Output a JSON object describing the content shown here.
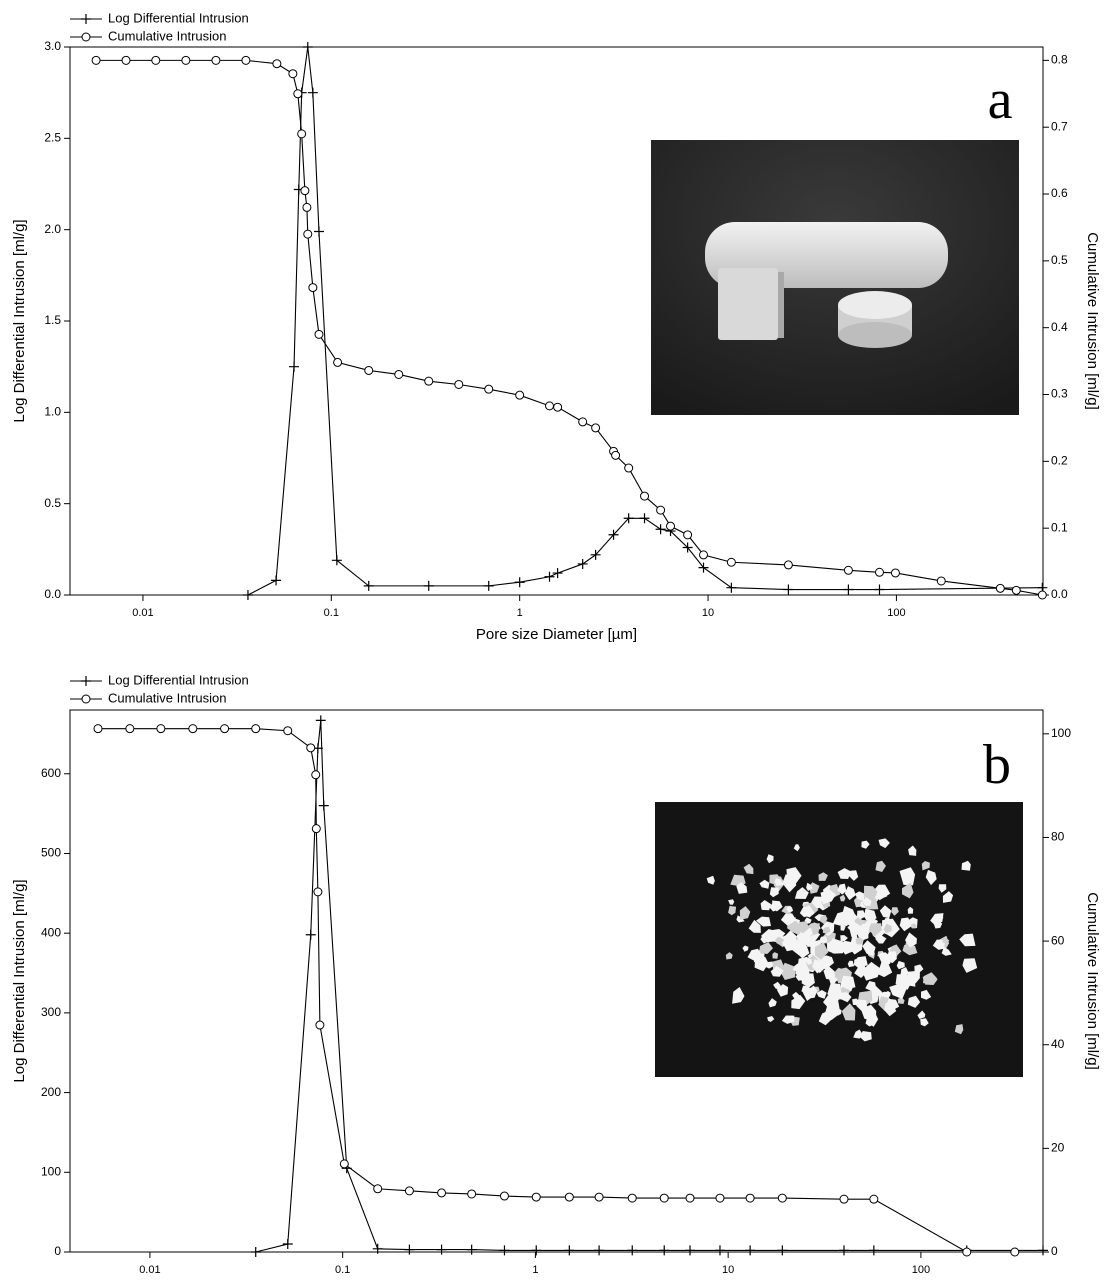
{
  "chart_data": [
    {
      "type": "line",
      "annotation": "a",
      "xlabel": "Pore size Diameter [µm]",
      "ylabel": "Log Differential Intrusion [ml/g]",
      "y2label": "Cumulative Intrusion [ml/g]",
      "xscale": "log",
      "xlim": [
        0.0041,
        600
      ],
      "xticks": [
        0.01,
        0.1,
        1,
        10,
        100
      ],
      "ylim": [
        0,
        3.0
      ],
      "yticks": [
        {
          "value": 0,
          "label": "0.0"
        },
        0.5,
        {
          "value": 1,
          "label": "1.0"
        },
        1.5,
        {
          "value": 2,
          "label": "2.0"
        },
        2.5,
        {
          "value": 3,
          "label": "3.0"
        }
      ],
      "y2lim": [
        0,
        0.82
      ],
      "y2ticks": [
        {
          "value": 0,
          "label": "0.0"
        },
        0.1,
        0.2,
        0.3,
        0.4,
        0.5,
        0.6,
        0.7,
        0.8
      ],
      "series": [
        {
          "name": "Log Differential Intrusion",
          "color": "#000000",
          "marker": "plus",
          "x": [
            0.0361,
            0.0509,
            0.0634,
            0.0672,
            0.0696,
            0.075,
            0.0798,
            0.086,
            0.107,
            0.158,
            0.329,
            0.685,
            1,
            1.44,
            1.59,
            2.16,
            2.53,
            3.15,
            3.79,
            4.6,
            5.6,
            6.32,
            7.79,
            9.46,
            13.3,
            26.7,
            55.6,
            81.3,
            595
          ],
          "values": [
            0,
            0.08,
            1.25,
            2.22,
            2.75,
            3.0,
            2.75,
            1.99,
            0.19,
            0.05,
            0.05,
            0.05,
            0.07,
            0.1,
            0.12,
            0.17,
            0.22,
            0.33,
            0.42,
            0.42,
            0.36,
            0.35,
            0.26,
            0.15,
            0.04,
            0.03,
            0.03,
            0.03,
            0.04
          ]
        },
        {
          "name": "Cumulative Intrusion",
          "color": "#000000",
          "marker": "circle",
          "axis": "y2",
          "x": [
            0.00564,
            0.00813,
            0.0117,
            0.0169,
            0.0244,
            0.0352,
            0.0514,
            0.0625,
            0.0664,
            0.0696,
            0.0724,
            0.0742,
            0.075,
            0.0798,
            0.086,
            0.108,
            0.158,
            0.228,
            0.329,
            0.475,
            0.685,
            1,
            1.44,
            1.59,
            2.16,
            2.53,
            3.15,
            3.23,
            3.79,
            4.6,
            5.6,
            6.32,
            7.79,
            9.46,
            13.3,
            26.7,
            55.6,
            81.3,
            98.8,
            173,
            356,
            433,
            595
          ],
          "values": [
            0.8,
            0.8,
            0.8,
            0.8,
            0.8,
            0.8,
            0.795,
            0.78,
            0.75,
            0.69,
            0.605,
            0.58,
            0.54,
            0.46,
            0.39,
            0.348,
            0.336,
            0.33,
            0.32,
            0.315,
            0.308,
            0.299,
            0.283,
            0.281,
            0.259,
            0.25,
            0.215,
            0.209,
            0.19,
            0.148,
            0.127,
            0.103,
            0.09,
            0.06,
            0.049,
            0.045,
            0.037,
            0.034,
            0.033,
            0.021,
            0.01,
            0.007,
            0
          ]
        }
      ]
    },
    {
      "type": "line",
      "annotation": "b",
      "ylabel": "Log Differential Intrusion [ml/g]",
      "y2label": "Cumulative Intrusion [ml/g]",
      "xscale": "log",
      "xlim": [
        0.00385,
        430
      ],
      "xticks": [
        0.01,
        0.1,
        1,
        10,
        100
      ],
      "ylim": [
        0,
        680
      ],
      "yticks": [
        0,
        100,
        200,
        300,
        400,
        500,
        600
      ],
      "y2lim": [
        0,
        104.6
      ],
      "y2ticks": [
        0,
        20,
        40,
        60,
        80,
        100
      ],
      "series": [
        {
          "name": "Log Differential Intrusion",
          "color": "#000000",
          "marker": "plus",
          "x": [
            0.0354,
            0.0519,
            0.0683,
            0.0744,
            0.077,
            0.0798,
            0.105,
            0.152,
            0.222,
            0.326,
            0.467,
            0.691,
            1.01,
            1.5,
            2.14,
            3.18,
            4.66,
            6.34,
            9.07,
            13,
            19.1,
            39.9,
            57,
            173,
            430
          ],
          "values": [
            0,
            10,
            398,
            632,
            667,
            560,
            105,
            4,
            3,
            3,
            3,
            2,
            2,
            2,
            2,
            2,
            2,
            2,
            2,
            2,
            2,
            2,
            2,
            2,
            2
          ]
        },
        {
          "name": "Cumulative Intrusion",
          "color": "#000000",
          "marker": "circle",
          "axis": "y2",
          "x": [
            0.00538,
            0.00787,
            0.0114,
            0.0167,
            0.0244,
            0.0354,
            0.0519,
            0.0683,
            0.0725,
            0.073,
            0.0744,
            0.0762,
            0.102,
            0.152,
            0.222,
            0.326,
            0.467,
            0.691,
            1.01,
            1.5,
            2.14,
            3.18,
            4.66,
            6.34,
            9.07,
            13,
            19.1,
            39.9,
            57,
            173,
            307
          ],
          "values": [
            101,
            101,
            101,
            101,
            101,
            101,
            100.6,
            97.3,
            92.1,
            81.7,
            69.5,
            43.8,
            17,
            12.2,
            11.8,
            11.4,
            11.2,
            10.8,
            10.6,
            10.6,
            10.6,
            10.4,
            10.4,
            10.4,
            10.4,
            10.4,
            10.4,
            10.2,
            10.2,
            0,
            0
          ]
        }
      ]
    }
  ]
}
